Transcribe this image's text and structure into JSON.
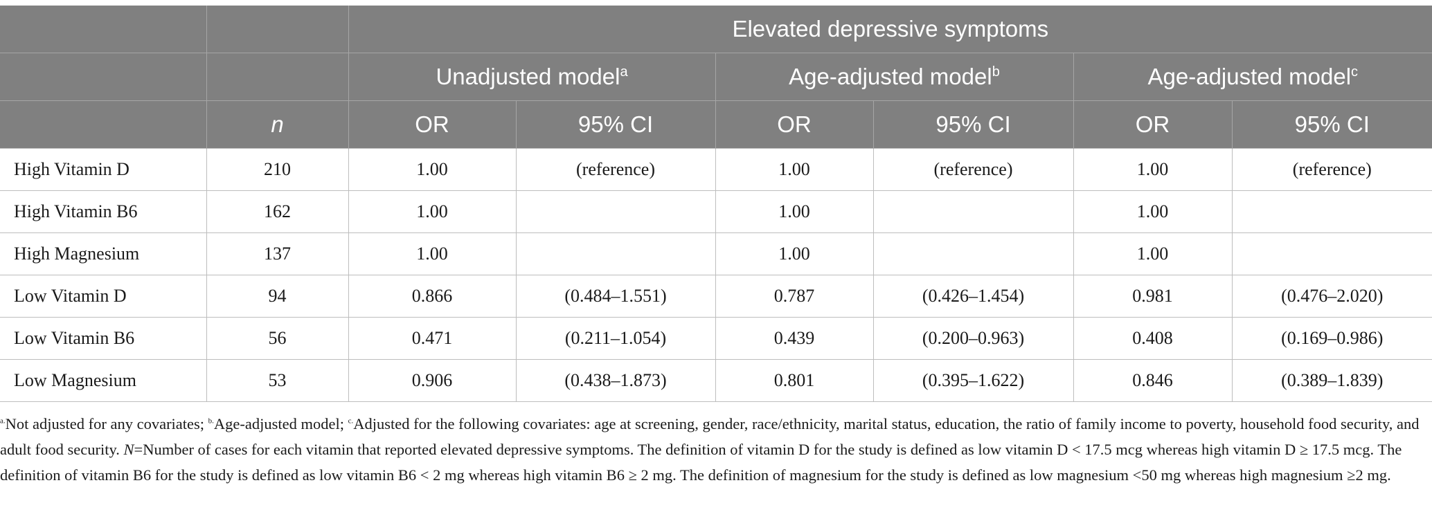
{
  "table": {
    "header": {
      "group_title": "Elevated depressive symptoms",
      "n_label": "n",
      "models": [
        {
          "label": "Unadjusted model",
          "sup": "a",
          "or_label": "OR",
          "ci_label": "95% CI"
        },
        {
          "label": "Age-adjusted model",
          "sup": "b",
          "or_label": "OR",
          "ci_label": "95% CI"
        },
        {
          "label": "Age-adjusted model",
          "sup": "c",
          "or_label": "OR",
          "ci_label": "95% CI"
        }
      ]
    },
    "rows": [
      {
        "label": "High Vitamin D",
        "n": "210",
        "cells": [
          "1.00",
          "(reference)",
          "1.00",
          "(reference)",
          "1.00",
          "(reference)"
        ]
      },
      {
        "label": "High Vitamin B6",
        "n": "162",
        "cells": [
          "1.00",
          "",
          "1.00",
          "",
          "1.00",
          ""
        ]
      },
      {
        "label": "High Magnesium",
        "n": "137",
        "cells": [
          "1.00",
          "",
          "1.00",
          "",
          "1.00",
          ""
        ]
      },
      {
        "label": "Low Vitamin D",
        "n": "94",
        "cells": [
          "0.866",
          "(0.484–1.551)",
          "0.787",
          "(0.426–1.454)",
          "0.981",
          "(0.476–2.020)"
        ]
      },
      {
        "label": "Low Vitamin B6",
        "n": "56",
        "cells": [
          "0.471",
          "(0.211–1.054)",
          "0.439",
          "(0.200–0.963)",
          "0.408",
          "(0.169–0.986)"
        ]
      },
      {
        "label": "Low Magnesium",
        "n": "53",
        "cells": [
          "0.906",
          "(0.438–1.873)",
          "0.801",
          "(0.395–1.622)",
          "0.846",
          "(0.389–1.839)"
        ]
      }
    ]
  },
  "footnote": {
    "a_mark": "a.",
    "a_text": "Not adjusted for any covariates; ",
    "b_mark": "b.",
    "b_text": "Age-adjusted model; ",
    "c_mark": "c.",
    "c_text": "Adjusted for the following covariates: age at screening, gender, race/ethnicity, marital status, education, the ratio of family income to poverty, household food security, and adult food security. ",
    "n_symbol": "N",
    "rest_text": "=Number of cases for each vitamin that reported elevated depressive symptoms. The definition of vitamin D for the study is defined as low vitamin D < 17.5 mcg whereas high vitamin D ≥ 17.5 mcg. The definition of vitamin B6 for the study is defined as low vitamin B6 < 2 mg whereas high vitamin B6 ≥ 2 mg. The definition of magnesium for the study is defined as low magnesium <50 mg whereas high magnesium ≥2 mg."
  }
}
